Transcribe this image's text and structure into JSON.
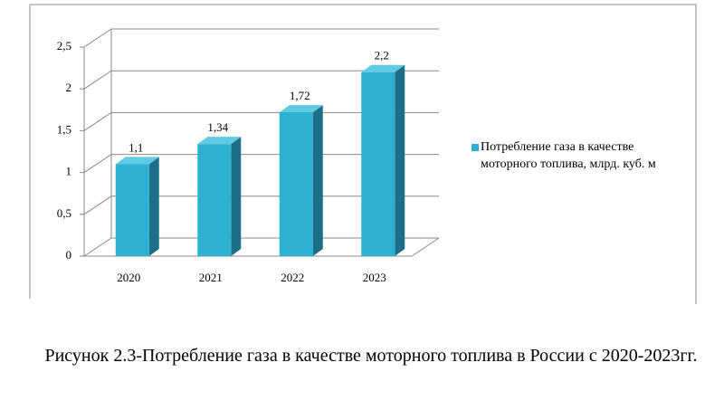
{
  "chart_data": {
    "type": "bar3d",
    "categories": [
      "2020",
      "2021",
      "2022",
      "2023"
    ],
    "series": [
      {
        "name": "Потребление газа в качестве моторного топлива, млрд. куб. м",
        "color": "#2db0d2",
        "values": [
          1.1,
          1.34,
          1.72,
          2.2
        ],
        "value_labels": [
          "1,1",
          "1,34",
          "1,72",
          "2,2"
        ]
      }
    ],
    "ylim": [
      0,
      2.5
    ],
    "yticks": [
      0,
      {
        "value": 0.5,
        "label": "0,5"
      },
      1,
      {
        "value": 1.5,
        "label": "1,5"
      },
      2,
      {
        "value": 2.5,
        "label": "2,5"
      }
    ],
    "grid": true,
    "legend": "right"
  },
  "caption": "Рисунок 2.3-Потребление газа в качестве моторного топлива в России с 2020-2023гг."
}
